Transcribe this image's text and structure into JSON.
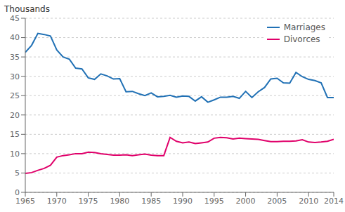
{
  "chart_data": {
    "type": "line",
    "ylabel": "Thousands",
    "x": [
      1965,
      1966,
      1967,
      1968,
      1969,
      1970,
      1971,
      1972,
      1973,
      1974,
      1975,
      1976,
      1977,
      1978,
      1979,
      1980,
      1981,
      1982,
      1983,
      1984,
      1985,
      1986,
      1987,
      1988,
      1989,
      1990,
      1991,
      1992,
      1993,
      1994,
      1995,
      1996,
      1997,
      1998,
      1999,
      2000,
      2001,
      2002,
      2003,
      2004,
      2005,
      2006,
      2007,
      2008,
      2009,
      2010,
      2011,
      2012,
      2013,
      2014
    ],
    "series": [
      {
        "name": "Marriages",
        "color": "#2171B5",
        "values": [
          36.2,
          38.0,
          41.1,
          40.8,
          40.4,
          36.8,
          35.0,
          34.4,
          32.1,
          31.9,
          29.6,
          29.2,
          30.6,
          30.1,
          29.3,
          29.4,
          26.0,
          26.1,
          25.5,
          25.0,
          25.7,
          24.7,
          24.8,
          25.1,
          24.6,
          24.9,
          24.8,
          23.6,
          24.7,
          23.3,
          23.9,
          24.6,
          24.6,
          24.8,
          24.3,
          26.1,
          24.5,
          26.0,
          27.1,
          29.3,
          29.5,
          28.3,
          28.2,
          31.0,
          29.9,
          29.2,
          28.9,
          28.3,
          24.5,
          24.5
        ]
      },
      {
        "name": "Divorces",
        "color": "#E0006A",
        "values": [
          4.9,
          5.1,
          5.7,
          6.2,
          7.0,
          9.1,
          9.5,
          9.7,
          10.0,
          10.0,
          10.4,
          10.3,
          10.0,
          9.8,
          9.6,
          9.6,
          9.7,
          9.5,
          9.7,
          9.9,
          9.6,
          9.5,
          9.5,
          14.2,
          13.2,
          12.8,
          13.0,
          12.6,
          12.8,
          13.0,
          14.0,
          14.2,
          14.1,
          13.8,
          14.0,
          13.9,
          13.8,
          13.7,
          13.4,
          13.1,
          13.1,
          13.2,
          13.2,
          13.3,
          13.6,
          13.0,
          12.9,
          13.0,
          13.2,
          13.7
        ]
      }
    ],
    "xlim": [
      1965,
      2014
    ],
    "xticks": [
      1965,
      1970,
      1975,
      1980,
      1985,
      1990,
      1995,
      2000,
      2005,
      2010,
      2014
    ],
    "ylim": [
      0,
      45
    ],
    "yticks": [
      0,
      5,
      10,
      15,
      20,
      25,
      30,
      35,
      40,
      45
    ],
    "grid": "y",
    "legend": "upper right"
  }
}
